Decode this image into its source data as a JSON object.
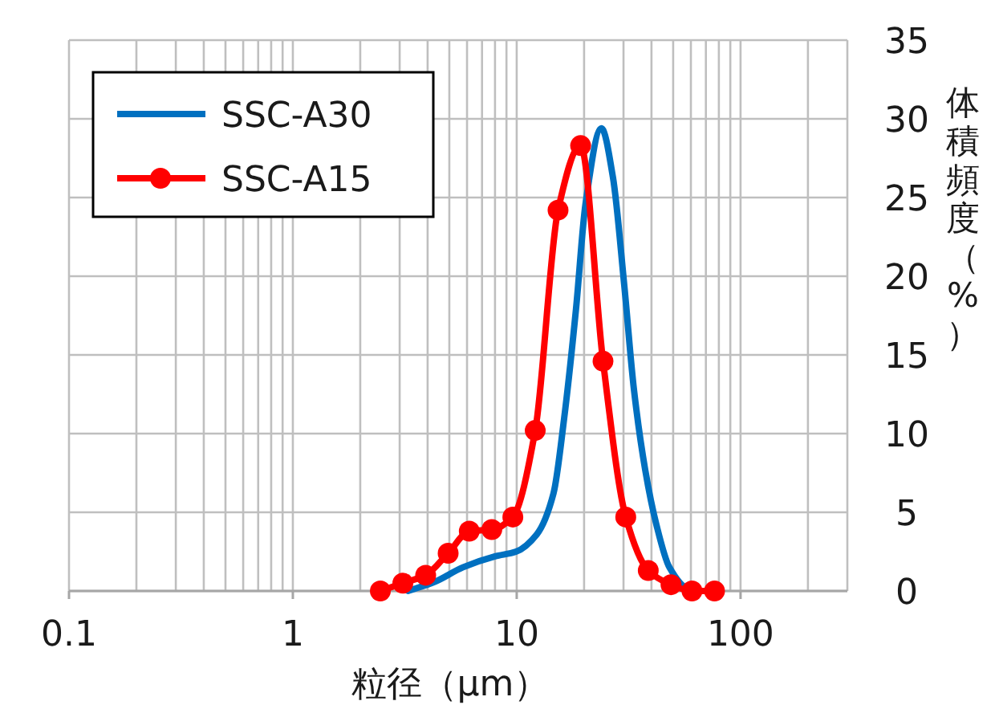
{
  "chart_data": {
    "type": "line",
    "xlabel": "粒径（μm）",
    "ylabel": "体積頻度（%）",
    "log": "x",
    "xlim": [
      0.1,
      300
    ],
    "xticks": [
      0.1,
      1,
      10,
      100
    ],
    "ylim": [
      0,
      35
    ],
    "yticks": [
      0,
      5,
      10,
      15,
      20,
      25,
      30,
      35
    ],
    "grid": true,
    "legend": "top left",
    "line_style": "solid",
    "series": [
      {
        "name": "SSC-A30",
        "color": "#0070c0",
        "marker": "none",
        "x": [
          3.27,
          4.33,
          5.74,
          8.0,
          9.93,
          12.3,
          14.6,
          16.3,
          18.4,
          20.3,
          23.9,
          26.9,
          30.2,
          33.4,
          37.5,
          42.1,
          48.1,
          58.7,
          64.9
        ],
        "values": [
          0,
          0.6,
          1.5,
          2.2,
          2.5,
          3.6,
          6.2,
          11,
          17.9,
          24.6,
          29.4,
          26.3,
          19.5,
          12.8,
          7.7,
          4.2,
          1.5,
          0.1,
          0
        ]
      },
      {
        "name": "SSC-A15",
        "color": "#ff0000",
        "marker": "circle",
        "x": [
          2.46,
          3.1,
          3.92,
          4.94,
          6.14,
          7.74,
          9.61,
          12.1,
          15.3,
          19.3,
          24.3,
          30.7,
          38.7,
          48.9,
          60.7,
          76.5
        ],
        "values": [
          0,
          0.5,
          1.0,
          2.4,
          3.8,
          3.9,
          4.7,
          10.2,
          24.2,
          28.3,
          14.6,
          4.7,
          1.3,
          0.4,
          0,
          0
        ]
      }
    ]
  }
}
